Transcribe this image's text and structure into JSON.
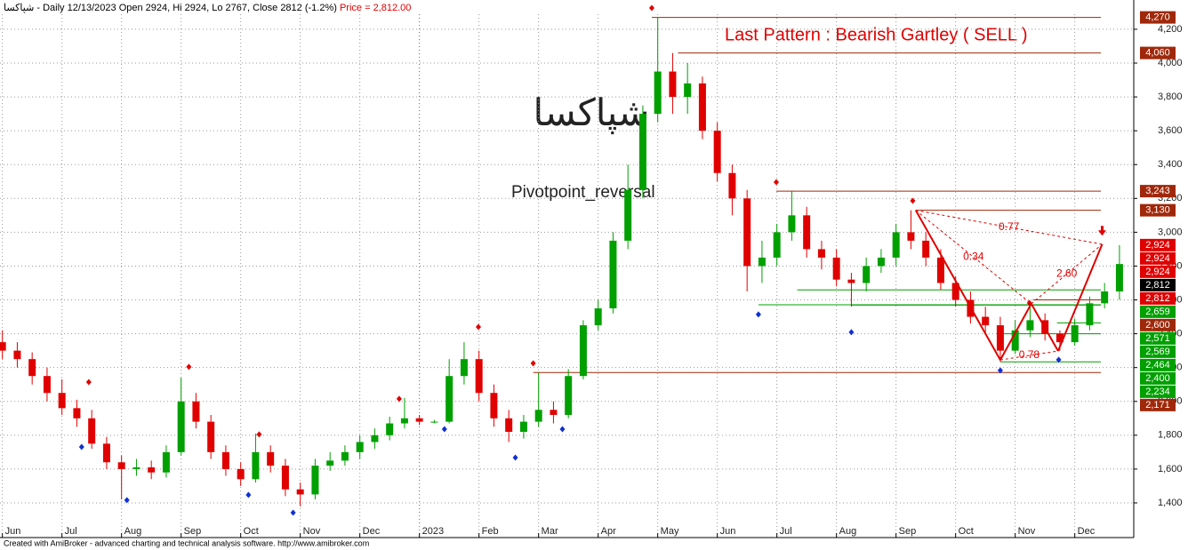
{
  "chart_data": {
    "type": "candlestick",
    "header": "شپاکسا - Daily 12/13/2023 Open 2924, Hi 2924, Lo 2767, Close 2812 (-1.2%)",
    "header_price": "Price = 2,812.00",
    "title": "Last Pattern : Bearish Gartley ( SELL )",
    "symbol": "شپاکسا",
    "indicator": "Pivotpoint_reversal",
    "footer": "Created with AmiBroker - advanced charting and technical analysis software. http://www.amibroker.com",
    "up_color": "#00a000",
    "down_color": "#e00000",
    "x": [
      0,
      0.25,
      0.5,
      0.75,
      1,
      1.25,
      1.5,
      1.75,
      2,
      2.25,
      2.5,
      2.75,
      3,
      3.25,
      3.5,
      3.75,
      4,
      4.25,
      4.5,
      4.75,
      5,
      5.25,
      5.5,
      5.75,
      6,
      6.25,
      6.5,
      6.75,
      7,
      7.25,
      7.5,
      7.75,
      8,
      8.25,
      8.5,
      8.75,
      9,
      9.25,
      9.5,
      9.75,
      10,
      10.25,
      10.5,
      10.75,
      11,
      11.25,
      11.5,
      11.75,
      12,
      12.25,
      12.5,
      12.75,
      13,
      13.25,
      13.5,
      13.75,
      14,
      14.25,
      14.5,
      14.75,
      15,
      15.25,
      15.5,
      15.75,
      16,
      16.25,
      16.5,
      16.75,
      17,
      17.25,
      17.5,
      17.75,
      18,
      18.25,
      18.5,
      18.75
    ],
    "open": [
      2350,
      2300,
      2250,
      2150,
      2050,
      1960,
      1900,
      1750,
      1640,
      1600,
      1610,
      1580,
      1700,
      2000,
      1880,
      1700,
      1600,
      1540,
      1700,
      1620,
      1480,
      1450,
      1620,
      1650,
      1700,
      1760,
      1800,
      1870,
      1900,
      1880,
      1880,
      2150,
      2250,
      2050,
      1900,
      1820,
      1880,
      1950,
      1920,
      2150,
      2450,
      2550,
      2950,
      3250,
      3700,
      3950,
      3800,
      3880,
      3600,
      3350,
      3200,
      2800,
      2850,
      3000,
      3100,
      2900,
      2850,
      2720,
      2700,
      2800,
      2850,
      3000,
      2950,
      2850,
      2700,
      2600,
      2500,
      2450,
      2300,
      2420,
      2480,
      2400,
      2350,
      2450,
      2580,
      2650
    ],
    "high": [
      2420,
      2350,
      2290,
      2200,
      2130,
      2010,
      1950,
      1790,
      1680,
      1660,
      1650,
      1740,
      2140,
      2050,
      1920,
      1740,
      1640,
      1810,
      1740,
      1660,
      1520,
      1660,
      1700,
      1740,
      1800,
      1840,
      1910,
      2020,
      1920,
      1890,
      2250,
      2350,
      2300,
      2100,
      1950,
      1920,
      2170,
      2000,
      2190,
      2480,
      2600,
      3000,
      3400,
      3750,
      4270,
      4060,
      4000,
      3920,
      3650,
      3400,
      3250,
      2950,
      3050,
      3243,
      3150,
      2950,
      2900,
      2760,
      2850,
      2900,
      3050,
      3130,
      3000,
      2900,
      2740,
      2650,
      2560,
      2500,
      2480,
      2560,
      2520,
      2420,
      2490,
      2620,
      2700,
      2924
    ],
    "low": [
      2250,
      2200,
      2100,
      2000,
      1920,
      1850,
      1720,
      1600,
      1420,
      1560,
      1540,
      1550,
      1680,
      1840,
      1660,
      1560,
      1500,
      1520,
      1580,
      1440,
      1380,
      1420,
      1590,
      1620,
      1660,
      1720,
      1770,
      1840,
      1860,
      1870,
      1870,
      2100,
      2000,
      1850,
      1760,
      1780,
      1850,
      1870,
      1900,
      2130,
      2420,
      2520,
      2900,
      3200,
      3650,
      3700,
      3700,
      3550,
      3300,
      3100,
      2650,
      2700,
      2800,
      2950,
      2850,
      2780,
      2680,
      2560,
      2650,
      2760,
      2800,
      2900,
      2800,
      2660,
      2560,
      2460,
      2400,
      2234,
      2280,
      2380,
      2360,
      2300,
      2330,
      2420,
      2550,
      2600
    ],
    "close": [
      2300,
      2250,
      2150,
      2050,
      1960,
      1900,
      1750,
      1640,
      1600,
      1610,
      1580,
      1700,
      2000,
      1880,
      1700,
      1600,
      1540,
      1700,
      1620,
      1480,
      1450,
      1620,
      1650,
      1700,
      1760,
      1800,
      1870,
      1900,
      1880,
      1880,
      2150,
      2250,
      2050,
      1900,
      1820,
      1880,
      1950,
      1920,
      2150,
      2450,
      2550,
      2950,
      3250,
      3700,
      3950,
      3800,
      3880,
      3600,
      3350,
      3200,
      2800,
      2850,
      3000,
      3100,
      2900,
      2850,
      2720,
      2700,
      2800,
      2850,
      3000,
      2950,
      2850,
      2700,
      2600,
      2500,
      2450,
      2300,
      2420,
      2480,
      2400,
      2350,
      2450,
      2580,
      2650,
      2812
    ],
    "xlim": [
      -0.04,
      18.99
    ],
    "ylim": [
      1195,
      4373
    ],
    "xticks": [
      {
        "value": 0,
        "label": "Jun"
      },
      {
        "value": 1,
        "label": "Jul"
      },
      {
        "value": 2,
        "label": "Aug"
      },
      {
        "value": 3,
        "label": "Sep"
      },
      {
        "value": 4,
        "label": "Oct"
      },
      {
        "value": 5,
        "label": "Nov"
      },
      {
        "value": 6,
        "label": "Dec"
      },
      {
        "value": 7,
        "label": "2023"
      },
      {
        "value": 8,
        "label": "Feb"
      },
      {
        "value": 9,
        "label": "Mar"
      },
      {
        "value": 10,
        "label": "Apr"
      },
      {
        "value": 11,
        "label": "May"
      },
      {
        "value": 12,
        "label": "Jun"
      },
      {
        "value": 13,
        "label": "Jul"
      },
      {
        "value": 14,
        "label": "Aug"
      },
      {
        "value": 15,
        "label": "Sep"
      },
      {
        "value": 16,
        "label": "Oct"
      },
      {
        "value": 17,
        "label": "Nov"
      },
      {
        "value": 18,
        "label": "Dec"
      }
    ],
    "yticks": [
      {
        "value": 1400,
        "label": "1,400"
      },
      {
        "value": 1600,
        "label": "1,600"
      },
      {
        "value": 1800,
        "label": "1,800"
      },
      {
        "value": 2000,
        "label": "2,000"
      },
      {
        "value": 2200,
        "label": "2,200"
      },
      {
        "value": 2400,
        "label": "2,400"
      },
      {
        "value": 2600,
        "label": "2,600"
      },
      {
        "value": 2800,
        "label": "2,800"
      },
      {
        "value": 3000,
        "label": "3,000"
      },
      {
        "value": 3200,
        "label": "3,200"
      },
      {
        "value": 3400,
        "label": "3,400"
      },
      {
        "value": 3600,
        "label": "3,600"
      },
      {
        "value": 3800,
        "label": "3,800"
      },
      {
        "value": 4000,
        "label": "4,000"
      },
      {
        "value": 4200,
        "label": "4,200"
      }
    ],
    "grid": true,
    "levels": [
      {
        "value": 4270,
        "label": "4,270",
        "color": "#a0280a",
        "start": 10.9
      },
      {
        "value": 4060,
        "label": "4,060",
        "color": "#a0280a",
        "start": 11.34
      },
      {
        "value": 3243,
        "label": "3,243",
        "color": "#a0280a",
        "start": 12.99
      },
      {
        "value": 3130,
        "label": "3,130",
        "color": "#a0280a",
        "start": 15.33
      },
      {
        "value": 2924,
        "label": "2,924",
        "color": "#e00000"
      },
      {
        "value": 2924,
        "label": "2,924",
        "color": "#e00000"
      },
      {
        "value": 2924,
        "label": "2,924",
        "color": "#e00000"
      },
      {
        "value": 2812,
        "label": "2,812",
        "color": "#000000"
      },
      {
        "value": 2812,
        "label": "2,812",
        "color": "#e00000"
      },
      {
        "value": 2659,
        "label": "2,659",
        "color": "#00a000",
        "start": 13.34
      },
      {
        "value": 2600,
        "label": "2,600",
        "color": "#a0280a",
        "start": 17.3
      },
      {
        "value": 2571,
        "label": "2,571",
        "color": "#00a000",
        "start": 12.69
      },
      {
        "value": 2569,
        "label": "2,569",
        "color": "#00a000",
        "start": 14.25
      },
      {
        "value": 2464,
        "label": "2,464",
        "color": "#00a000",
        "start": 17.7
      },
      {
        "value": 2400,
        "label": "2,400",
        "color": "#00a000",
        "start": 16.75
      },
      {
        "value": 2234,
        "label": "2,234",
        "color": "#00a000",
        "start": 16.75
      },
      {
        "value": 2171,
        "label": "2,171",
        "color": "#a0280a",
        "start": 8.91
      }
    ],
    "pattern": {
      "color": "#e00000",
      "x": [
        15.33,
        16.75,
        17.27,
        17.72,
        18.46
      ],
      "y": [
        3130,
        2245,
        2577,
        2298,
        2929
      ],
      "ratios": [
        0.34,
        0.77,
        {
          "value": 2.6,
          "label": "2.60"
        },
        0.78
      ]
    },
    "pivot_highs": {
      "color": "#e00000",
      "x": [
        1.45,
        3.13,
        4.31,
        6.66,
        7.99,
        8.91,
        10.9,
        12.99,
        15.28,
        17.24
      ],
      "y": [
        2114,
        2204,
        1805,
        2015,
        2440,
        2225,
        4326,
        3296,
        3186,
        2582
      ]
    },
    "pivot_lows": {
      "color": "#1030d0",
      "x": [
        1.33,
        2.09,
        4.13,
        4.88,
        7.42,
        8.61,
        9.4,
        12.69,
        14.25,
        16.75,
        17.73
      ],
      "y": [
        1731,
        1416,
        1447,
        1342,
        1836,
        1668,
        1836,
        2514,
        2409,
        2183,
        2246
      ]
    },
    "signal": {
      "x": 18.46,
      "y": 2990,
      "color": "#e00000"
    }
  }
}
